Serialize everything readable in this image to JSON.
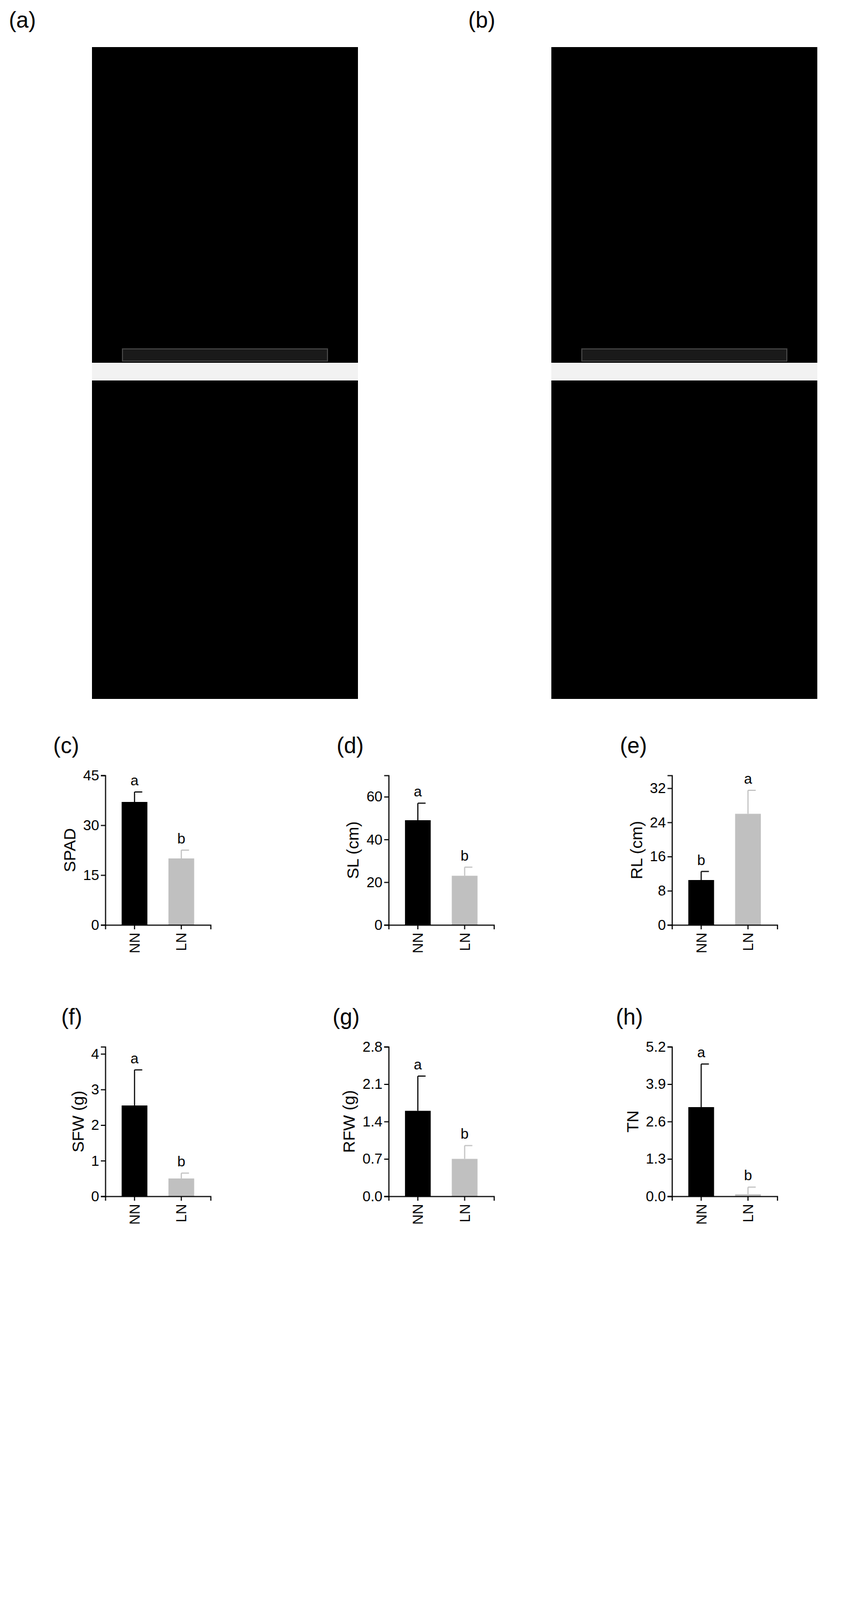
{
  "images": [
    {
      "label": "(a)"
    },
    {
      "label": "(b)"
    }
  ],
  "chart_data": [
    {
      "type": "bar",
      "title": "(c)",
      "y_label": "SPAD",
      "categories": [
        "NN",
        "LN"
      ],
      "values": [
        37,
        20
      ],
      "errors": [
        3,
        2.5
      ],
      "colors": [
        "#000000",
        "#c0c0c0"
      ],
      "annotations": [
        "a",
        "b"
      ],
      "ylim": [
        0,
        45
      ],
      "yticks": [
        0,
        15,
        30,
        45
      ]
    },
    {
      "type": "bar",
      "title": "(d)",
      "y_label": "SL (cm)",
      "categories": [
        "NN",
        "LN"
      ],
      "values": [
        49,
        23
      ],
      "errors": [
        8,
        4
      ],
      "colors": [
        "#000000",
        "#c0c0c0"
      ],
      "annotations": [
        "a",
        "b"
      ],
      "ylim": [
        0,
        70
      ],
      "yticks": [
        0,
        20,
        40,
        60
      ]
    },
    {
      "type": "bar",
      "title": "(e)",
      "y_label": "RL (cm)",
      "categories": [
        "NN",
        "LN"
      ],
      "values": [
        10.5,
        26
      ],
      "errors": [
        2,
        5.5
      ],
      "colors": [
        "#000000",
        "#c0c0c0"
      ],
      "annotations": [
        "b",
        "a"
      ],
      "ylim": [
        0,
        35
      ],
      "yticks": [
        0,
        8,
        16,
        24,
        32
      ]
    },
    {
      "type": "bar",
      "title": "(f)",
      "y_label": "SFW (g)",
      "categories": [
        "NN",
        "LN"
      ],
      "values": [
        2.55,
        0.5
      ],
      "errors": [
        1.0,
        0.15
      ],
      "colors": [
        "#000000",
        "#c0c0c0"
      ],
      "annotations": [
        "a",
        "b"
      ],
      "ylim": [
        0,
        4.2
      ],
      "yticks": [
        0,
        1,
        2,
        3,
        4
      ]
    },
    {
      "type": "bar",
      "title": "(g)",
      "y_label": "RFW (g)",
      "categories": [
        "NN",
        "LN"
      ],
      "values": [
        1.6,
        0.7
      ],
      "errors": [
        0.65,
        0.25
      ],
      "colors": [
        "#000000",
        "#c0c0c0"
      ],
      "annotations": [
        "a",
        "b"
      ],
      "ylim": [
        0,
        2.8
      ],
      "yticks": [
        {
          "value": 0,
          "label": "0.0"
        },
        0.7,
        1.4,
        2.1,
        2.8
      ]
    },
    {
      "type": "bar",
      "title": "(h)",
      "y_label": "TN",
      "categories": [
        "NN",
        "LN"
      ],
      "values": [
        3.1,
        0.07
      ],
      "errors": [
        1.5,
        0.25
      ],
      "colors": [
        "#000000",
        "#c0c0c0"
      ],
      "annotations": [
        "a",
        "b"
      ],
      "ylim": [
        0,
        5.2
      ],
      "yticks": [
        {
          "value": 0,
          "label": "0.0"
        },
        1.3,
        2.6,
        3.9,
        5.2
      ]
    }
  ]
}
